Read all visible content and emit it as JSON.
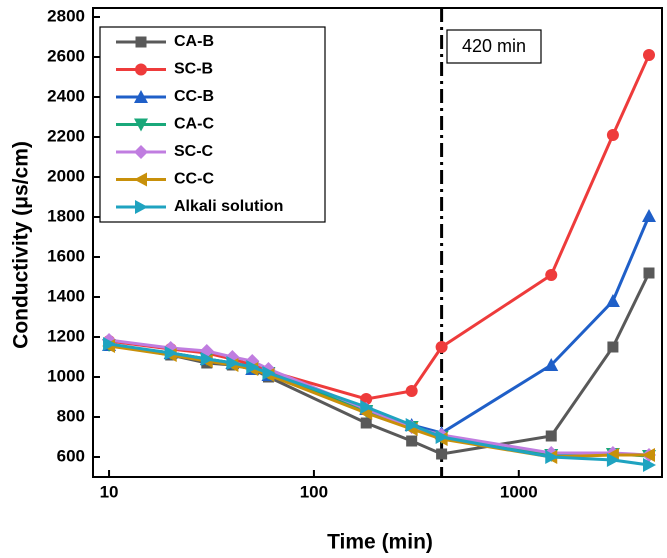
{
  "chart_data": {
    "type": "line",
    "x_label": "Time (min)",
    "y_label": "Conductivity (μs/cm)",
    "x": [
      10,
      20,
      30,
      40,
      50,
      60,
      180,
      300,
      420,
      1440,
      2880,
      4320
    ],
    "xlim": [
      8.35,
      5000
    ],
    "xticks": [
      10,
      100,
      1000
    ],
    "xscale": "log",
    "ylim": [
      500,
      2800
    ],
    "yticks": [
      600,
      800,
      1000,
      1200,
      1400,
      1600,
      1800,
      2000,
      2200,
      2400,
      2600,
      2800
    ],
    "legend": "upper left",
    "vline": {
      "x": 420,
      "label": "420 min"
    },
    "series": [
      {
        "name": "CA-B",
        "color": "#595959",
        "marker": "square",
        "values": [
          1160,
          1110,
          1070,
          1060,
          1040,
          1000,
          770,
          680,
          615,
          705,
          1150,
          1520
        ]
      },
      {
        "name": "SC-B",
        "color": "#ee3b3b",
        "marker": "circle",
        "values": [
          1180,
          1140,
          1120,
          1090,
          1060,
          1030,
          890,
          930,
          1150,
          1510,
          2210,
          2610
        ]
      },
      {
        "name": "CC-B",
        "color": "#1f5fc8",
        "marker": "triangle-up",
        "values": [
          1160,
          1120,
          1090,
          1070,
          1040,
          1010,
          840,
          760,
          720,
          1060,
          1380,
          1805
        ]
      },
      {
        "name": "CA-C",
        "color": "#19a87a",
        "marker": "triangle-down",
        "values": [
          1160,
          1120,
          1090,
          1070,
          1050,
          1020,
          830,
          750,
          700,
          610,
          615,
          605
        ]
      },
      {
        "name": "SC-C",
        "color": "#c07de0",
        "marker": "diamond",
        "values": [
          1185,
          1145,
          1130,
          1100,
          1080,
          1040,
          840,
          750,
          710,
          620,
          620,
          610
        ]
      },
      {
        "name": "CC-C",
        "color": "#c8900a",
        "marker": "triangle-left",
        "values": [
          1155,
          1110,
          1080,
          1060,
          1040,
          1010,
          820,
          740,
          690,
          600,
          610,
          610
        ]
      },
      {
        "name": "Alkali solution",
        "color": "#1fa3c0",
        "marker": "triangle-right",
        "values": [
          1165,
          1120,
          1090,
          1070,
          1050,
          1020,
          850,
          760,
          700,
          600,
          585,
          560
        ]
      }
    ]
  }
}
